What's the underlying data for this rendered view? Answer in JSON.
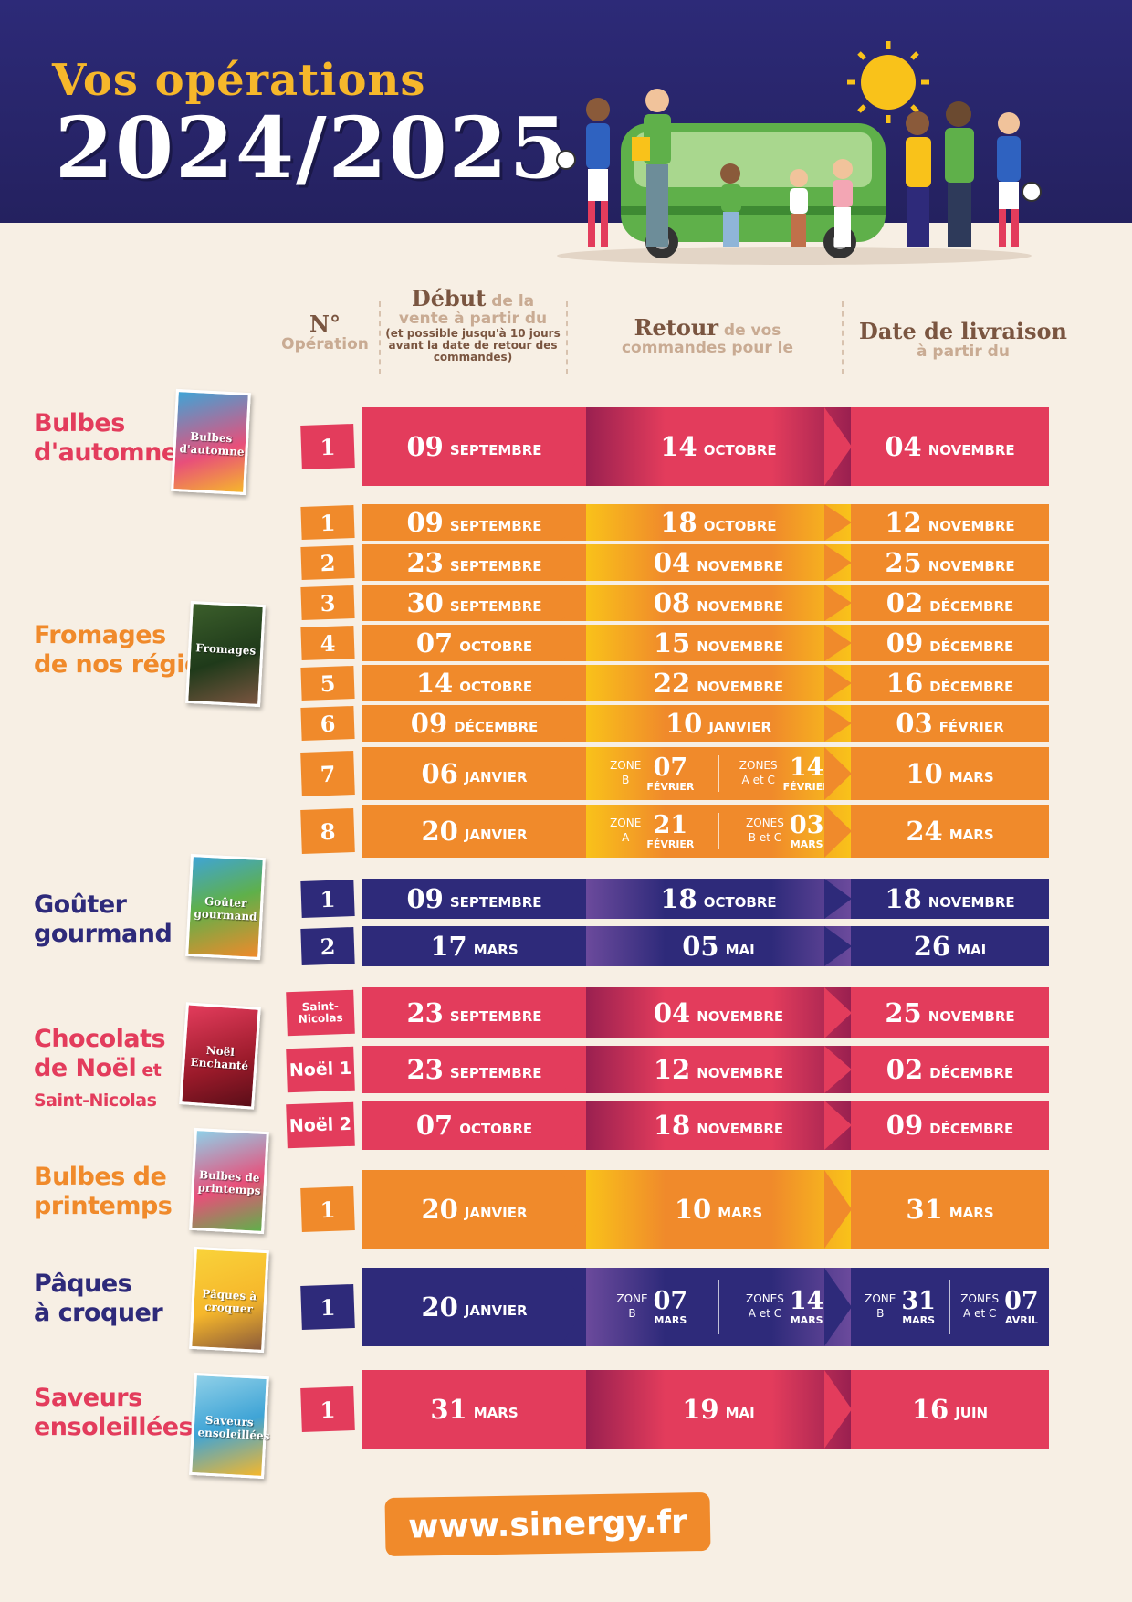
{
  "title": {
    "line1": "Vos opérations",
    "line2": "2024/2025"
  },
  "headers": {
    "num": {
      "big": "N°",
      "small": "Opération"
    },
    "start": {
      "big": "Début",
      "small1": " de la",
      "small2": "vente à partir du",
      "tiny": "(et possible jusqu'à 10 jours avant la date de retour des commandes)"
    },
    "return": {
      "big": "Retour",
      "small1": " de vos",
      "small2": "commandes pour le"
    },
    "delivery": {
      "big": "Date de livraison",
      "small": "à partir du"
    }
  },
  "colors": {
    "red": "#e33c5c",
    "orange": "#f08a2b",
    "navy": "#2e2a7a",
    "background": "#f7efe4"
  },
  "products": [
    {
      "name1": "Bulbes",
      "name2": "d'automne",
      "thumb": "Bulbes d'automne"
    },
    {
      "name1": "Fromages",
      "name2": "de nos régions",
      "thumb": "Fromages"
    },
    {
      "name1": "Goûter",
      "name2": "gourmand",
      "thumb": "Goûter gourmand"
    },
    {
      "name1": "Chocolats",
      "name2": "de Noël",
      "name2b": " et",
      "name3": "Saint-Nicolas",
      "thumb": "Noël Enchanté"
    },
    {
      "name1": "Bulbes de",
      "name2": "printemps",
      "thumb": "Bulbes de printemps"
    },
    {
      "name1": "Pâques",
      "name2": "à croquer",
      "thumb": "Pâques à croquer"
    },
    {
      "name1": "Saveurs",
      "name2": "ensoleillées",
      "thumb": "Saveurs ensoleillées"
    }
  ],
  "rows": [
    {
      "num": "1",
      "start": {
        "d": "09",
        "m": "SEPTEMBRE"
      },
      "ret": {
        "d": "14",
        "m": "OCTOBRE"
      },
      "del": {
        "d": "04",
        "m": "NOVEMBRE"
      }
    },
    {
      "num": "1",
      "start": {
        "d": "09",
        "m": "SEPTEMBRE"
      },
      "ret": {
        "d": "18",
        "m": "OCTOBRE"
      },
      "del": {
        "d": "12",
        "m": "NOVEMBRE"
      }
    },
    {
      "num": "2",
      "start": {
        "d": "23",
        "m": "SEPTEMBRE"
      },
      "ret": {
        "d": "04",
        "m": "NOVEMBRE"
      },
      "del": {
        "d": "25",
        "m": "NOVEMBRE"
      }
    },
    {
      "num": "3",
      "start": {
        "d": "30",
        "m": "SEPTEMBRE"
      },
      "ret": {
        "d": "08",
        "m": "NOVEMBRE"
      },
      "del": {
        "d": "02",
        "m": "DÉCEMBRE"
      }
    },
    {
      "num": "4",
      "start": {
        "d": "07",
        "m": "OCTOBRE"
      },
      "ret": {
        "d": "15",
        "m": "NOVEMBRE"
      },
      "del": {
        "d": "09",
        "m": "DÉCEMBRE"
      }
    },
    {
      "num": "5",
      "start": {
        "d": "14",
        "m": "OCTOBRE"
      },
      "ret": {
        "d": "22",
        "m": "NOVEMBRE"
      },
      "del": {
        "d": "16",
        "m": "DÉCEMBRE"
      }
    },
    {
      "num": "6",
      "start": {
        "d": "09",
        "m": "DÉCEMBRE"
      },
      "ret": {
        "d": "10",
        "m": "JANVIER"
      },
      "del": {
        "d": "03",
        "m": "FÉVRIER"
      }
    },
    {
      "num": "7",
      "start": {
        "d": "06",
        "m": "JANVIER"
      },
      "ret_zones": [
        {
          "l1": "ZONE",
          "l2": "B",
          "d": "07",
          "m": "FÉVRIER"
        },
        {
          "l1": "ZONES",
          "l2": "A et C",
          "d": "14",
          "m": "FÉVRIER"
        }
      ],
      "del": {
        "d": "10",
        "m": "MARS"
      }
    },
    {
      "num": "8",
      "start": {
        "d": "20",
        "m": "JANVIER"
      },
      "ret_zones": [
        {
          "l1": "ZONE",
          "l2": "A",
          "d": "21",
          "m": "FÉVRIER"
        },
        {
          "l1": "ZONES",
          "l2": "B et C",
          "d": "03",
          "m": "MARS"
        }
      ],
      "del": {
        "d": "24",
        "m": "MARS"
      }
    },
    {
      "num": "1",
      "start": {
        "d": "09",
        "m": "SEPTEMBRE"
      },
      "ret": {
        "d": "18",
        "m": "OCTOBRE"
      },
      "del": {
        "d": "18",
        "m": "NOVEMBRE"
      }
    },
    {
      "num": "2",
      "start": {
        "d": "17",
        "m": "MARS"
      },
      "ret": {
        "d": "05",
        "m": "MAI"
      },
      "del": {
        "d": "26",
        "m": "MAI"
      }
    },
    {
      "num": "Saint-Nicolas",
      "start": {
        "d": "23",
        "m": "SEPTEMBRE"
      },
      "ret": {
        "d": "04",
        "m": "NOVEMBRE"
      },
      "del": {
        "d": "25",
        "m": "NOVEMBRE"
      }
    },
    {
      "num": "Noël 1",
      "start": {
        "d": "23",
        "m": "SEPTEMBRE"
      },
      "ret": {
        "d": "12",
        "m": "NOVEMBRE"
      },
      "del": {
        "d": "02",
        "m": "DÉCEMBRE"
      }
    },
    {
      "num": "Noël 2",
      "start": {
        "d": "07",
        "m": "OCTOBRE"
      },
      "ret": {
        "d": "18",
        "m": "NOVEMBRE"
      },
      "del": {
        "d": "09",
        "m": "DÉCEMBRE"
      }
    },
    {
      "num": "1",
      "start": {
        "d": "20",
        "m": "JANVIER"
      },
      "ret": {
        "d": "10",
        "m": "MARS"
      },
      "del": {
        "d": "31",
        "m": "MARS"
      }
    },
    {
      "num": "1",
      "start": {
        "d": "20",
        "m": "JANVIER"
      },
      "ret_zones": [
        {
          "l1": "ZONE",
          "l2": "B",
          "d": "07",
          "m": "MARS"
        },
        {
          "l1": "ZONES",
          "l2": "A et C",
          "d": "14",
          "m": "MARS"
        }
      ],
      "del_zones": [
        {
          "l1": "ZONE",
          "l2": "B",
          "d": "31",
          "m": "MARS"
        },
        {
          "l1": "ZONES",
          "l2": "A et C",
          "d": "07",
          "m": "AVRIL"
        }
      ]
    },
    {
      "num": "1",
      "start": {
        "d": "31",
        "m": "MARS"
      },
      "ret": {
        "d": "19",
        "m": "MAI"
      },
      "del": {
        "d": "16",
        "m": "JUIN"
      }
    }
  ],
  "footer": {
    "url": "www.sinergy.fr"
  }
}
